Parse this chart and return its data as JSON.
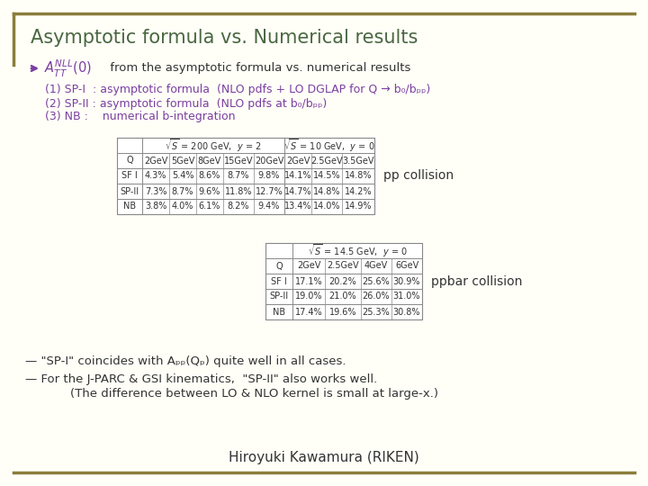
{
  "title": "Asymptotic formula vs. Numerical results",
  "title_color": "#4a6741",
  "bg_color": "#fffff8",
  "border_color": "#8b7d3a",
  "bullet_text": " from the asymptotic formula vs. numerical results",
  "items": [
    "(1) SP-I  : asymptotic formula  (NLO pdfs + LO DGLAP for Q → b₀/bₚₚ)",
    "(2) SP-II : asymptotic formula  (NLO pdfs at b₀/bₚₚ)",
    "(3) NB :    numerical b-integration"
  ],
  "table1_header_row2": [
    "Q",
    "2GeV",
    "5GeV",
    "8GeV",
    "15GeV",
    "20GeV",
    "2GeV",
    "2.5GeV",
    "3.5GeV"
  ],
  "table1_rows": [
    [
      "SF I",
      "4.3%",
      "5.4%",
      "8.6%",
      "8.7%",
      "9.8%",
      "14.1%",
      "14.5%",
      "14.8%"
    ],
    [
      "SP-II",
      "7.3%",
      "8.7%",
      "9.6%",
      "11.8%",
      "12.7%",
      "14.7%",
      "14.8%",
      "14.2%"
    ],
    [
      "NB",
      "3.8%",
      "4.0%",
      "6.1%",
      "8.2%",
      "9.4%",
      "13.4%",
      "14.0%",
      "14.9%"
    ]
  ],
  "pp_label": "pp collision",
  "table2_header_row2": [
    "Q",
    "2GeV",
    "2.5GeV",
    "4GeV",
    "6GeV"
  ],
  "table2_rows": [
    [
      "SF I",
      "17.1%",
      "20.2%",
      "25.6%",
      "30.9%"
    ],
    [
      "SP-II",
      "19.0%",
      "21.0%",
      "26.0%",
      "31.0%"
    ],
    [
      "NB",
      "17.4%",
      "19.6%",
      "25.3%",
      "30.8%"
    ]
  ],
  "ppbar_label": "ppbar collision",
  "footer1": "— \"SP-I\" coincides with Aₚₚ(Qₚ) quite well in all cases.",
  "footer2": "— For the J-PARC & GSI kinematics,  \"SP-II\" also works well.",
  "footer3": "(The difference between LO & NLO kernel is small at large-x.)",
  "author": "Hiroyuki Kawamura (RIKEN)",
  "purple_color": "#7b3fa0",
  "dark_text": "#333333",
  "table_border": "#888888"
}
